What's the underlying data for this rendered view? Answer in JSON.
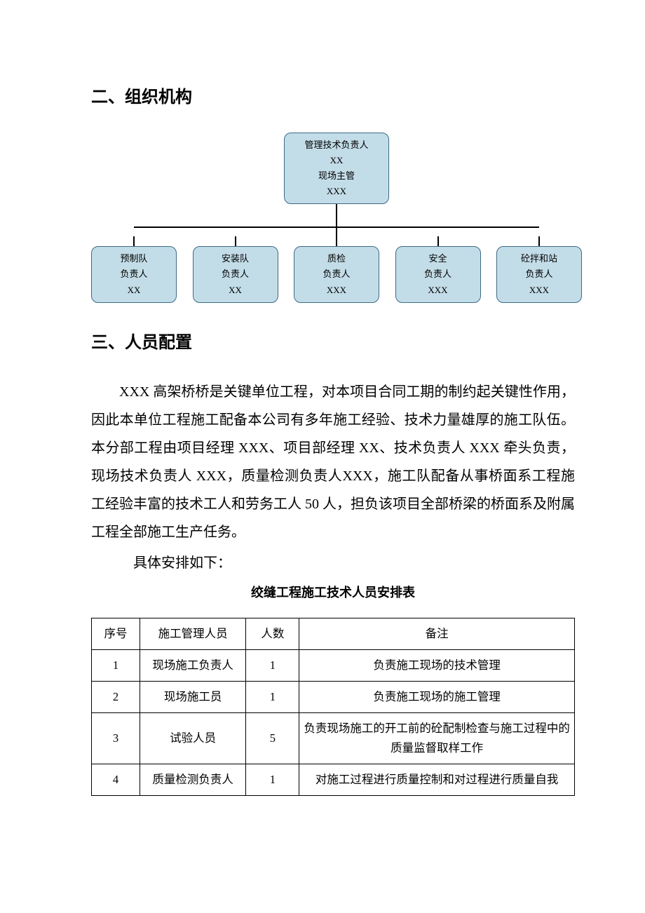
{
  "headings": {
    "section2": "二、组织机构",
    "section3": "三、人员配置"
  },
  "orgchart": {
    "node_fill": "#c3dde8",
    "node_border": "#3c6a85",
    "line_color": "#000000",
    "top": {
      "line1": "管理技术负责人",
      "line2": "XX",
      "line3": "现场主管",
      "line4": "XXX"
    },
    "leaves": [
      {
        "line1": "预制队",
        "line2": "负责人",
        "line3": "XX"
      },
      {
        "line1": "安装队",
        "line2": "负责人",
        "line3": "XX"
      },
      {
        "line1": "质检",
        "line2": "负责人",
        "line3": "XXX"
      },
      {
        "line1": "安全",
        "line2": "负责人",
        "line3": "XXX"
      },
      {
        "line1": "砼拌和站",
        "line2": "负责人",
        "line3": "XXX"
      }
    ]
  },
  "body": {
    "p1": "XXX 高架桥桥是关键单位工程，对本项目合同工期的制约起关键性作用，因此本单位工程施工配备本公司有多年施工经验、技术力量雄厚的施工队伍。本分部工程由项目经理 XXX、项目部经理 XX、技术负责人 XXX 牵头负责，现场技术负责人 XXX，质量检测负责人XXX，施工队配备从事桥面系工程施工经验丰富的技术工人和劳务工人 50 人，担负该项目全部桥梁的桥面系及附属工程全部施工生产任务。",
    "p2": "具体安排如下：",
    "table_title": "绞缝工程施工技术人员安排表"
  },
  "table": {
    "columns": [
      "序号",
      "施工管理人员",
      "人数",
      "备注"
    ],
    "col_widths_pct": [
      10,
      22,
      11,
      57
    ],
    "rows": [
      [
        "1",
        "现场施工负责人",
        "1",
        "负责施工现场的技术管理"
      ],
      [
        "2",
        "现场施工员",
        "1",
        "负责施工现场的施工管理"
      ],
      [
        "3",
        "试验人员",
        "5",
        "负责现场施工的开工前的砼配制检查与施工过程中的质量监督取样工作"
      ],
      [
        "4",
        "质量检测负责人",
        "1",
        "对施工过程进行质量控制和对过程进行质量自我"
      ]
    ]
  }
}
